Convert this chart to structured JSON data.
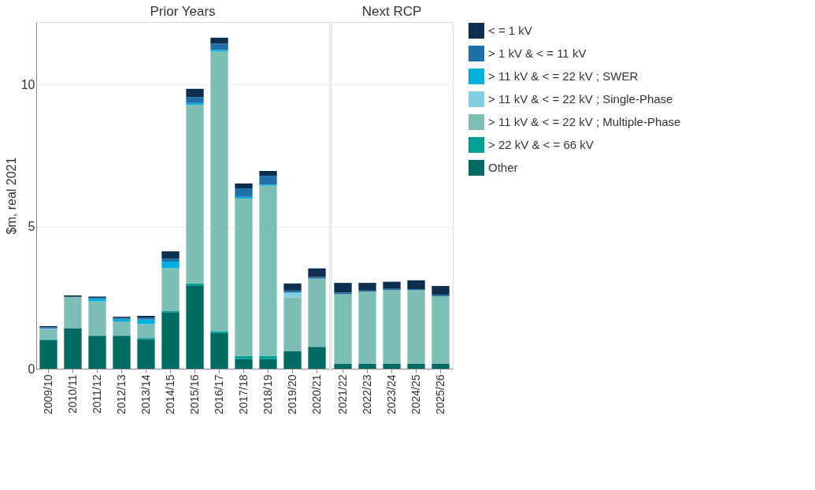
{
  "chart_data": [
    {
      "type": "bar",
      "title": "Prior Years",
      "ylabel": "$m, real 2021",
      "stacked": true,
      "grid": "y",
      "legend": "right",
      "categories": [
        "2009/10",
        "2010/11",
        "2011/12",
        "2012/13",
        "2013/14",
        "2014/15",
        "2015/16",
        "2016/17",
        "2017/18",
        "2018/19",
        "2019/20",
        "2020/21"
      ],
      "ylim": [
        0,
        12.2
      ],
      "yticks": [
        0,
        5,
        10
      ],
      "series": [
        {
          "name": "Other",
          "color": "#006b63",
          "values": [
            1.01,
            1.43,
            1.16,
            1.16,
            1.04,
            1.99,
            2.93,
            1.25,
            0.34,
            0.34,
            0.61,
            0.77
          ]
        },
        {
          "name": "> 22 kV & < = 66 kV",
          "color": "#00a196",
          "values": [
            0.03,
            0,
            0,
            0,
            0.04,
            0.05,
            0.07,
            0.07,
            0.11,
            0.11,
            0,
            0
          ]
        },
        {
          "name": "> 11 kV & < = 22 kV ; Multiple-Phase",
          "color": "#7dbfb5",
          "values": [
            0.35,
            1.1,
            1.21,
            0.5,
            0.49,
            1.5,
            6.29,
            9.84,
            5.54,
            5.99,
            1.9,
            2.4
          ]
        },
        {
          "name": "> 11 kV & < = 22 kV ; Single-Phase",
          "color": "#7fd0e3",
          "values": [
            0.02,
            0,
            0,
            0,
            0,
            0,
            0,
            0,
            0,
            0,
            0.17,
            0
          ]
        },
        {
          "name": "> 11 kV & < = 22 kV  ; SWER",
          "color": "#00b0e0",
          "values": [
            0,
            0,
            0.09,
            0.09,
            0.16,
            0.23,
            0.06,
            0.06,
            0.06,
            0.04,
            0,
            0
          ]
        },
        {
          "name": "> 1 kV & < = 11 kV",
          "color": "#1f6fa8",
          "values": [
            0.05,
            0,
            0.04,
            0.04,
            0.07,
            0.11,
            0.21,
            0.22,
            0.3,
            0.31,
            0.07,
            0.06
          ]
        },
        {
          "name": "< = 1 kV",
          "color": "#0d2f4f",
          "values": [
            0.04,
            0.05,
            0.04,
            0.04,
            0.06,
            0.25,
            0.29,
            0.21,
            0.17,
            0.17,
            0.25,
            0.3
          ]
        }
      ]
    },
    {
      "type": "bar",
      "title": "Next RCP",
      "stacked": true,
      "grid": "y",
      "legend": "right",
      "tick_labels": "x",
      "categories": [
        "2021/22",
        "2022/23",
        "2023/24",
        "2024/25",
        "2025/26"
      ],
      "ylim": [
        0,
        12.2
      ],
      "yticks": [
        0,
        5,
        10
      ],
      "series": [
        {
          "name": "Other",
          "color": "#006b63",
          "values": [
            0.18,
            0.18,
            0.18,
            0.18,
            0.18
          ]
        },
        {
          "name": "> 22 kV & < = 66 kV",
          "color": "#00a196",
          "values": [
            0,
            0,
            0,
            0,
            0
          ]
        },
        {
          "name": "> 11 kV & < = 22 kV ; Multiple-Phase",
          "color": "#7dbfb5",
          "values": [
            2.44,
            2.53,
            2.59,
            2.59,
            2.37
          ]
        },
        {
          "name": "> 11 kV & < = 22 kV ; Single-Phase",
          "color": "#7fd0e3",
          "values": [
            0,
            0,
            0,
            0,
            0
          ]
        },
        {
          "name": "> 11 kV & < = 22 kV  ; SWER",
          "color": "#00b0e0",
          "values": [
            0,
            0,
            0,
            0,
            0
          ]
        },
        {
          "name": "> 1 kV & < = 11 kV",
          "color": "#1f6fa8",
          "values": [
            0.06,
            0.04,
            0.04,
            0.03,
            0.05
          ]
        },
        {
          "name": "< = 1 kV",
          "color": "#0d2f4f",
          "values": [
            0.34,
            0.27,
            0.25,
            0.31,
            0.31
          ]
        }
      ]
    }
  ]
}
